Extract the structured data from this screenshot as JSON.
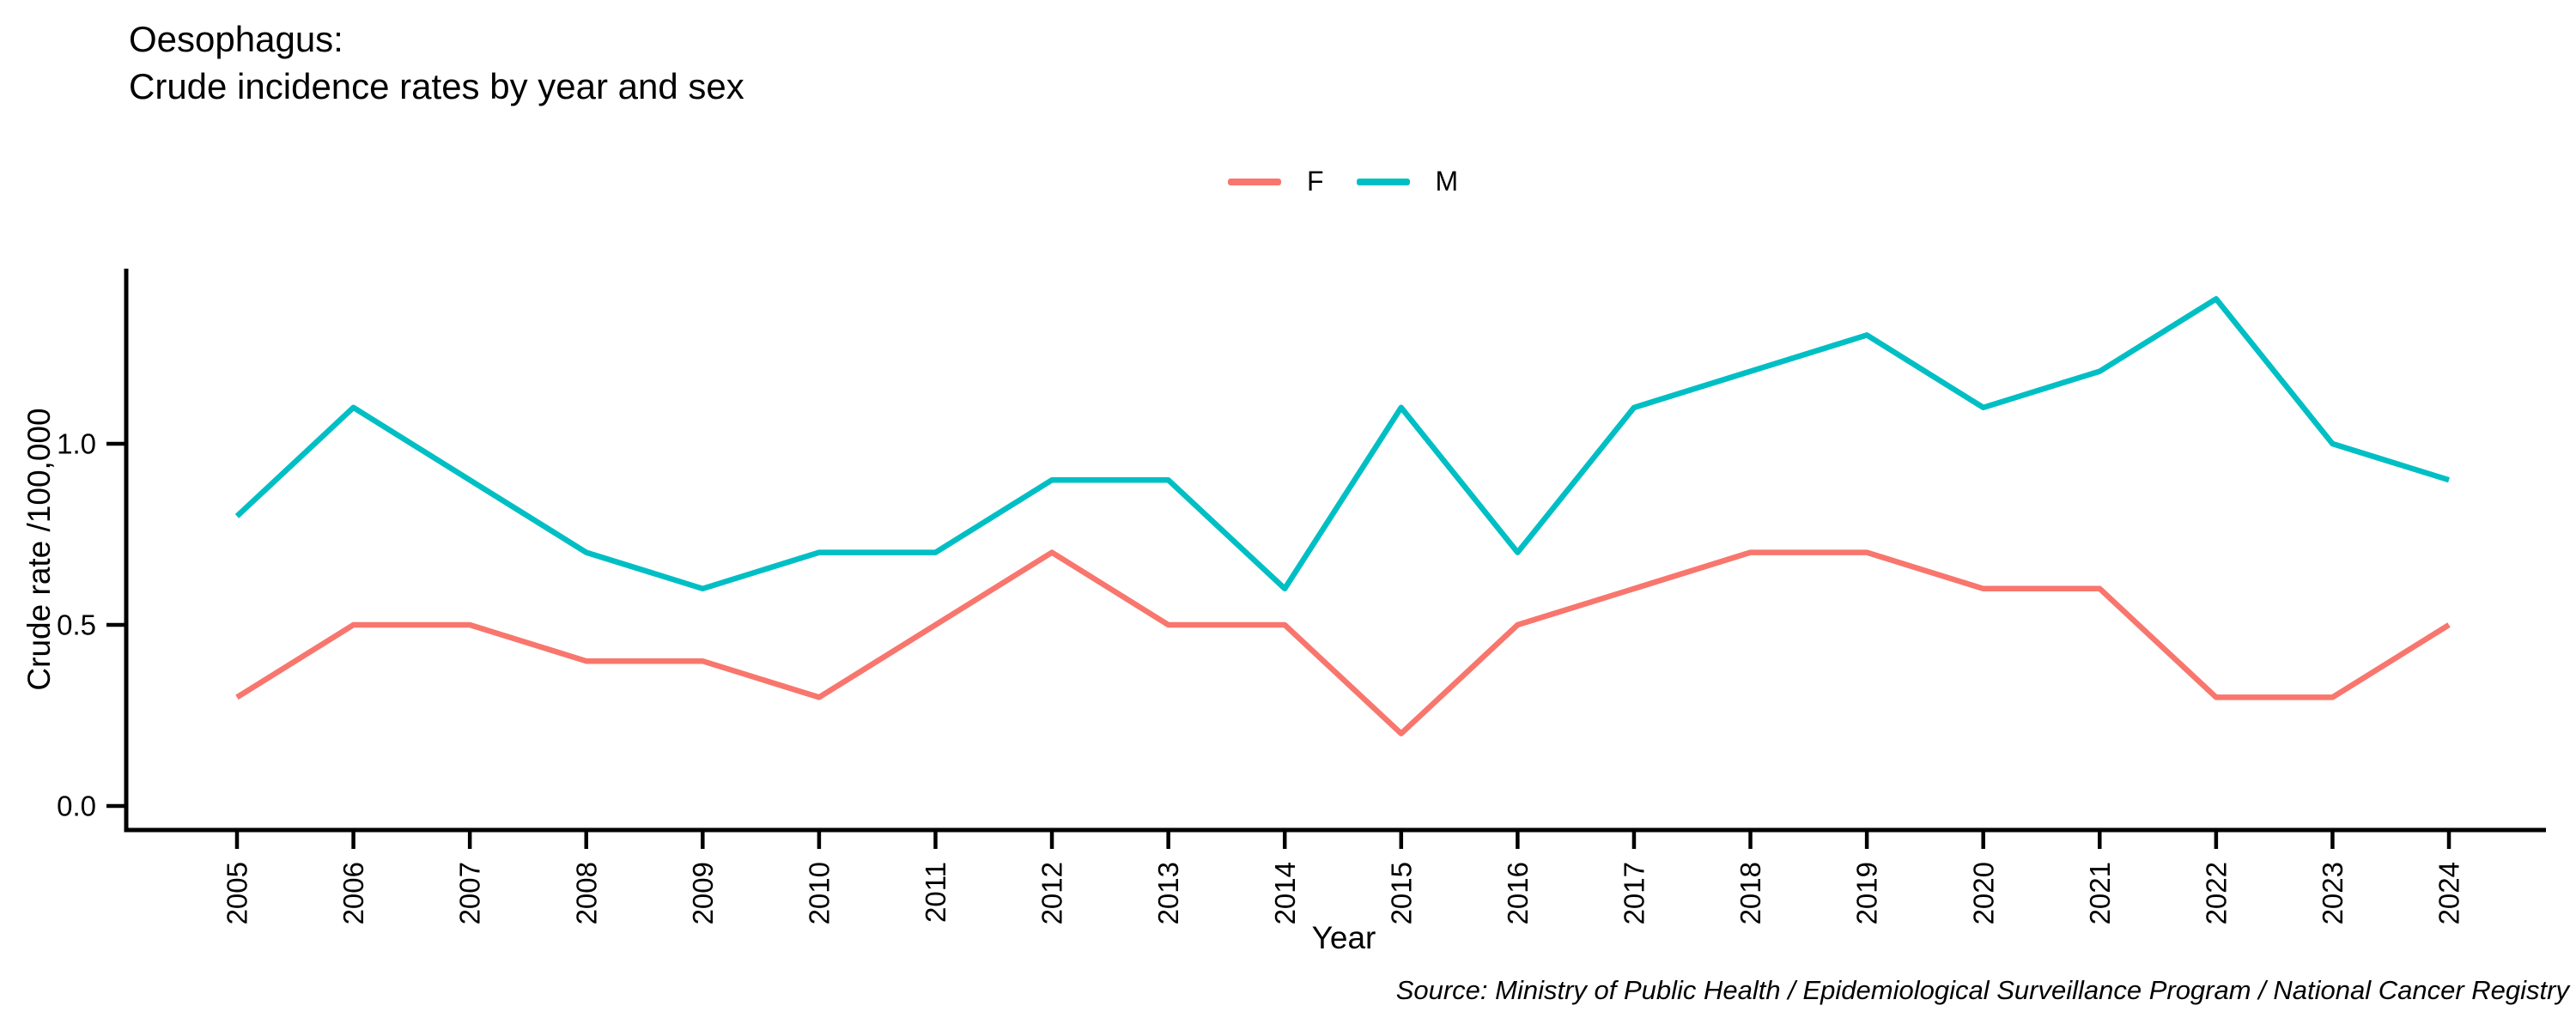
{
  "title": {
    "line1": "Oesophagus:",
    "line2": "Crude incidence rates by year and sex"
  },
  "legend": {
    "items": [
      {
        "label": "F",
        "color": "#F8766D"
      },
      {
        "label": "M",
        "color": "#00BFC4"
      }
    ]
  },
  "axes": {
    "y_label": "Crude rate /100,000",
    "x_label": "Year",
    "y_tick_labels": [
      "0.0",
      "0.5",
      "1.0"
    ]
  },
  "source_note": "Source: Ministry of Public Health / Epidemiological Surveillance Program / National Cancer Registry",
  "chart_data": {
    "type": "line",
    "title": "Oesophagus: Crude incidence rates by year and sex",
    "xlabel": "Year",
    "ylabel": "Crude rate /100,000",
    "x": [
      2005,
      2006,
      2007,
      2008,
      2009,
      2010,
      2011,
      2012,
      2013,
      2014,
      2015,
      2016,
      2017,
      2018,
      2019,
      2020,
      2021,
      2022,
      2023,
      2024
    ],
    "series": [
      {
        "name": "F",
        "color": "#F8766D",
        "values": [
          0.3,
          0.5,
          0.5,
          0.4,
          0.4,
          0.3,
          0.5,
          0.7,
          0.5,
          0.5,
          0.2,
          0.5,
          0.6,
          0.7,
          0.7,
          0.6,
          0.6,
          0.3,
          0.3,
          0.5
        ]
      },
      {
        "name": "M",
        "color": "#00BFC4",
        "values": [
          0.8,
          1.1,
          0.9,
          0.7,
          0.6,
          0.7,
          0.7,
          0.9,
          0.9,
          0.6,
          1.1,
          0.7,
          1.1,
          1.2,
          1.3,
          1.1,
          1.2,
          1.4,
          1.0,
          0.9
        ]
      }
    ],
    "y_tick_values": [
      0.0,
      0.5,
      1.0
    ],
    "ylim": [
      -0.07,
      1.48
    ],
    "grid": false,
    "legend_position": "top-center",
    "x_tick_label_rotation_deg": 90
  }
}
